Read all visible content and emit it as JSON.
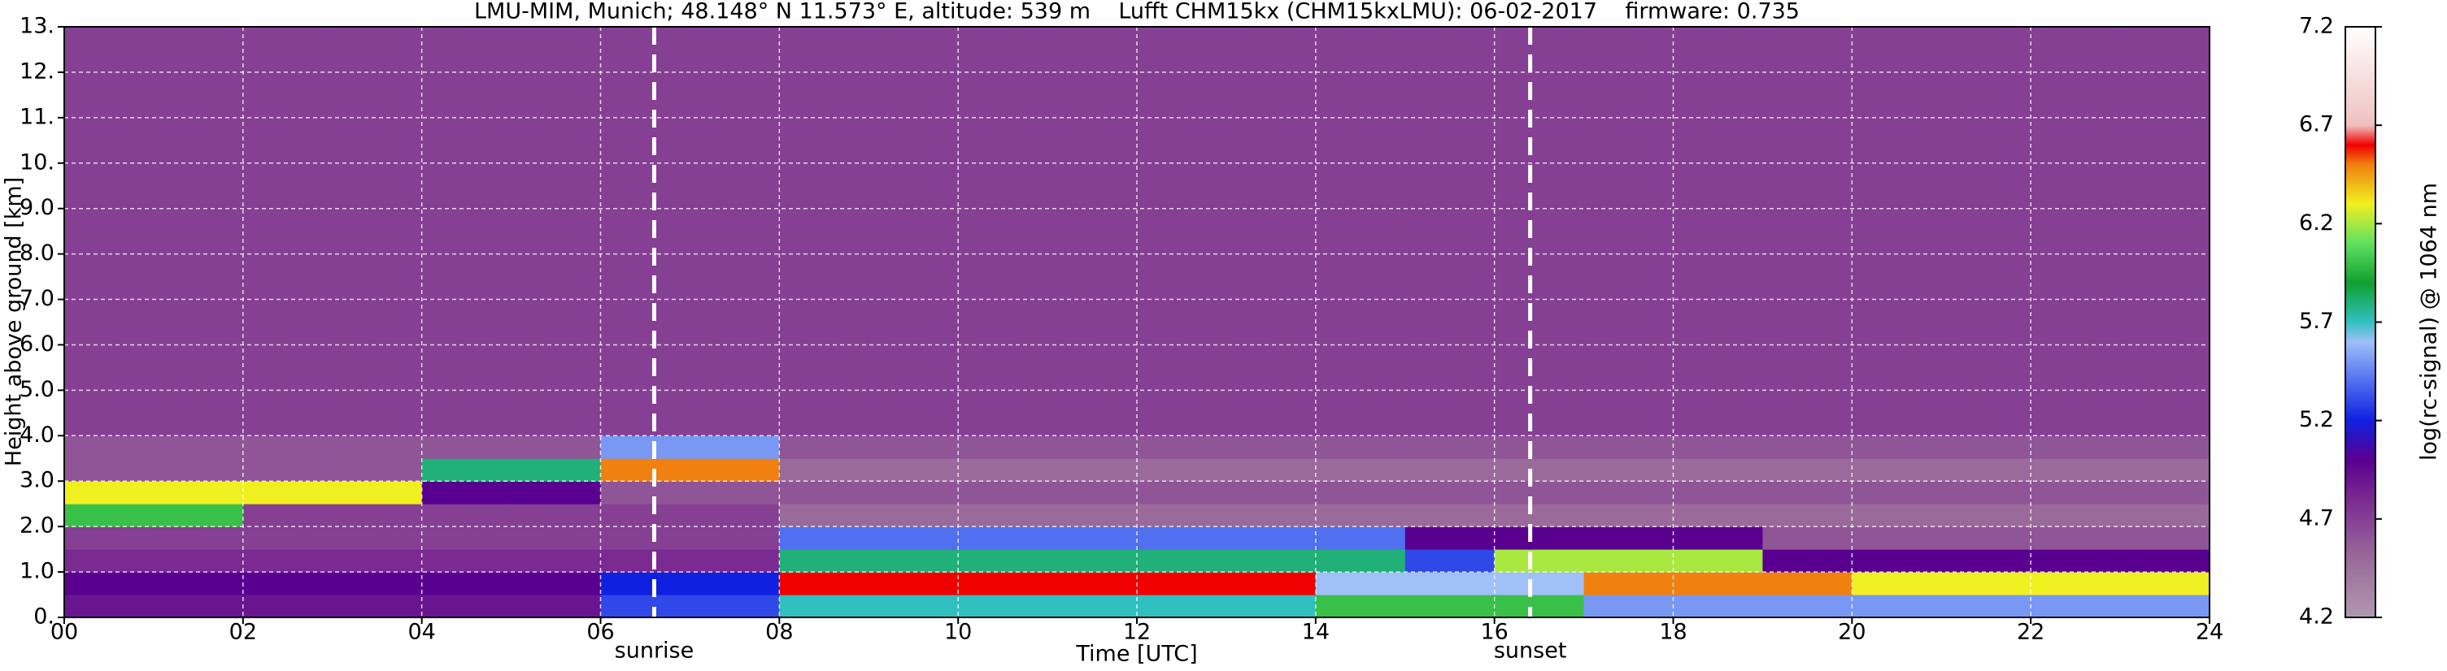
{
  "chart_data": {
    "type": "heatmap",
    "title": "LMU-MIM, Munich; 48.148° N 11.573° E, altitude: 539 m    Lufft CHM15kx (CHM15kxLMU): 06-02-2017    firmware: 0.735",
    "xlabel": "Time [UTC]",
    "ylabel": "Height above ground [km]",
    "colorbar_label": "log(rc-signal) @ 1064 nm",
    "xlim": [
      0,
      24
    ],
    "ylim": [
      0,
      13
    ],
    "xticks": [
      {
        "value": 0,
        "label": "00"
      },
      {
        "value": 2,
        "label": "02"
      },
      {
        "value": 4,
        "label": "04"
      },
      {
        "value": 6,
        "label": "06"
      },
      {
        "value": 8,
        "label": "08"
      },
      {
        "value": 10,
        "label": "10"
      },
      {
        "value": 12,
        "label": "12"
      },
      {
        "value": 14,
        "label": "14"
      },
      {
        "value": 16,
        "label": "16"
      },
      {
        "value": 18,
        "label": "18"
      },
      {
        "value": 20,
        "label": "20"
      },
      {
        "value": 22,
        "label": "22"
      },
      {
        "value": 24,
        "label": "24"
      }
    ],
    "yticks": [
      {
        "value": 0,
        "label": "0."
      },
      {
        "value": 1,
        "label": "1.0"
      },
      {
        "value": 2,
        "label": "2.0"
      },
      {
        "value": 3,
        "label": "3.0"
      },
      {
        "value": 4,
        "label": "4.0"
      },
      {
        "value": 5,
        "label": "5.0"
      },
      {
        "value": 6,
        "label": "6.0"
      },
      {
        "value": 7,
        "label": "7.0"
      },
      {
        "value": 8,
        "label": "8.0"
      },
      {
        "value": 9,
        "label": "9.0"
      },
      {
        "value": 10,
        "label": "10."
      },
      {
        "value": 11,
        "label": "11."
      },
      {
        "value": 12,
        "label": "12."
      },
      {
        "value": 13,
        "label": "13."
      }
    ],
    "grid": true,
    "clim": [
      4.2,
      7.2
    ],
    "cticks": [
      4.2,
      4.7,
      5.2,
      5.7,
      6.2,
      6.7,
      7.2
    ],
    "colorscale": [
      {
        "value": 4.2,
        "color": "#b098b0"
      },
      {
        "value": 4.5,
        "color": "#9a6a9a"
      },
      {
        "value": 4.8,
        "color": "#7a2a90"
      },
      {
        "value": 5.0,
        "color": "#5a0090"
      },
      {
        "value": 5.2,
        "color": "#1020e0"
      },
      {
        "value": 5.4,
        "color": "#5070f0"
      },
      {
        "value": 5.6,
        "color": "#a0c0f8"
      },
      {
        "value": 5.7,
        "color": "#30c0c0"
      },
      {
        "value": 5.9,
        "color": "#10a030"
      },
      {
        "value": 6.1,
        "color": "#60e060"
      },
      {
        "value": 6.3,
        "color": "#f0f020"
      },
      {
        "value": 6.5,
        "color": "#f08010"
      },
      {
        "value": 6.6,
        "color": "#f00000"
      },
      {
        "value": 6.7,
        "color": "#f0c0c0"
      },
      {
        "value": 7.2,
        "color": "#ffffff"
      }
    ],
    "x_edges": [
      0,
      1,
      2,
      3,
      4,
      5,
      6,
      7,
      8,
      9,
      10,
      11,
      12,
      13,
      14,
      15,
      16,
      17,
      18,
      19,
      20,
      21,
      22,
      23,
      24
    ],
    "y_edges": [
      0,
      0.5,
      1,
      1.5,
      2,
      2.5,
      3,
      3.5,
      4,
      13
    ],
    "z": [
      [
        4.9,
        4.9,
        4.9,
        4.9,
        4.9,
        4.9,
        5.3,
        5.3,
        5.7,
        5.7,
        5.7,
        5.7,
        5.7,
        5.7,
        6.0,
        6.0,
        6.0,
        5.5,
        5.5,
        5.5,
        5.5,
        5.5,
        5.5,
        5.5
      ],
      [
        5.0,
        5.0,
        5.0,
        5.0,
        5.0,
        5.0,
        5.2,
        5.2,
        6.6,
        6.6,
        6.6,
        6.6,
        6.6,
        6.6,
        5.6,
        5.6,
        5.6,
        6.5,
        6.5,
        6.5,
        6.3,
        6.3,
        6.3,
        6.3
      ],
      [
        4.8,
        4.8,
        4.8,
        4.8,
        4.8,
        4.8,
        4.8,
        4.8,
        5.8,
        5.8,
        5.8,
        5.8,
        5.8,
        5.8,
        5.8,
        5.3,
        6.2,
        6.2,
        6.2,
        5.0,
        5.0,
        5.0,
        5.0,
        5.0
      ],
      [
        4.7,
        4.7,
        4.7,
        4.7,
        4.7,
        4.7,
        4.7,
        4.7,
        5.4,
        5.4,
        5.4,
        5.4,
        5.4,
        5.4,
        5.4,
        5.0,
        5.0,
        5.0,
        5.0,
        4.6,
        4.6,
        4.6,
        4.6,
        4.6
      ],
      [
        6.0,
        6.0,
        4.7,
        4.7,
        4.7,
        4.7,
        4.7,
        4.7,
        4.5,
        4.5,
        4.5,
        4.5,
        4.5,
        4.5,
        4.5,
        4.5,
        4.5,
        4.5,
        4.5,
        4.5,
        4.5,
        4.5,
        4.5,
        4.5
      ],
      [
        6.3,
        6.3,
        6.3,
        6.3,
        5.0,
        5.0,
        4.6,
        4.6,
        4.6,
        4.6,
        4.6,
        4.6,
        4.6,
        4.6,
        4.6,
        4.6,
        4.6,
        4.6,
        4.6,
        4.6,
        4.6,
        4.6,
        4.6,
        4.6
      ],
      [
        4.6,
        4.6,
        4.6,
        4.6,
        5.8,
        5.8,
        6.5,
        6.5,
        4.5,
        4.5,
        4.5,
        4.5,
        4.5,
        4.5,
        4.5,
        4.5,
        4.5,
        4.5,
        4.5,
        4.5,
        4.5,
        4.5,
        4.5,
        4.5
      ],
      [
        4.6,
        4.6,
        4.6,
        4.6,
        4.6,
        4.6,
        5.5,
        5.5,
        4.6,
        4.6,
        4.6,
        4.6,
        4.6,
        4.6,
        4.6,
        4.6,
        4.6,
        4.6,
        4.6,
        4.6,
        4.6,
        4.6,
        4.6,
        4.6
      ],
      [
        4.7,
        4.7,
        4.7,
        4.7,
        4.7,
        4.7,
        4.7,
        4.7,
        4.7,
        4.7,
        4.7,
        4.7,
        4.7,
        4.7,
        4.7,
        4.7,
        4.7,
        4.7,
        4.7,
        4.7,
        4.7,
        4.7,
        4.7,
        4.7
      ]
    ],
    "annotations": [
      {
        "x": 6.6,
        "label": "sunrise"
      },
      {
        "x": 16.4,
        "label": "sunset"
      }
    ]
  }
}
